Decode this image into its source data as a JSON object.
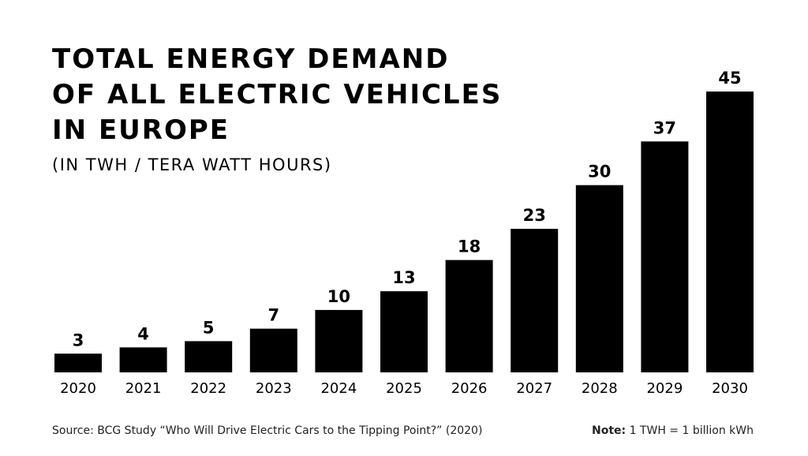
{
  "chart_data": {
    "type": "bar",
    "title": [
      "TOTAL ENERGY DEMAND",
      "OF ALL ELECTRIC VEHICLES",
      "IN EUROPE"
    ],
    "subtitle": "(IN TWH / TERA WATT HOURS)",
    "categories": [
      "2020",
      "2021",
      "2022",
      "2023",
      "2024",
      "2025",
      "2026",
      "2027",
      "2028",
      "2029",
      "2030"
    ],
    "values": [
      3,
      4,
      5,
      7,
      10,
      13,
      18,
      23,
      30,
      37,
      45
    ],
    "color": "#000000",
    "source": "Source: BCG Study “Who Will Drive Electric Cars to the Tipping Point?” (2020)",
    "note": {
      "label": "Note:",
      "text": "1 TWH = 1 billion kWh"
    }
  }
}
